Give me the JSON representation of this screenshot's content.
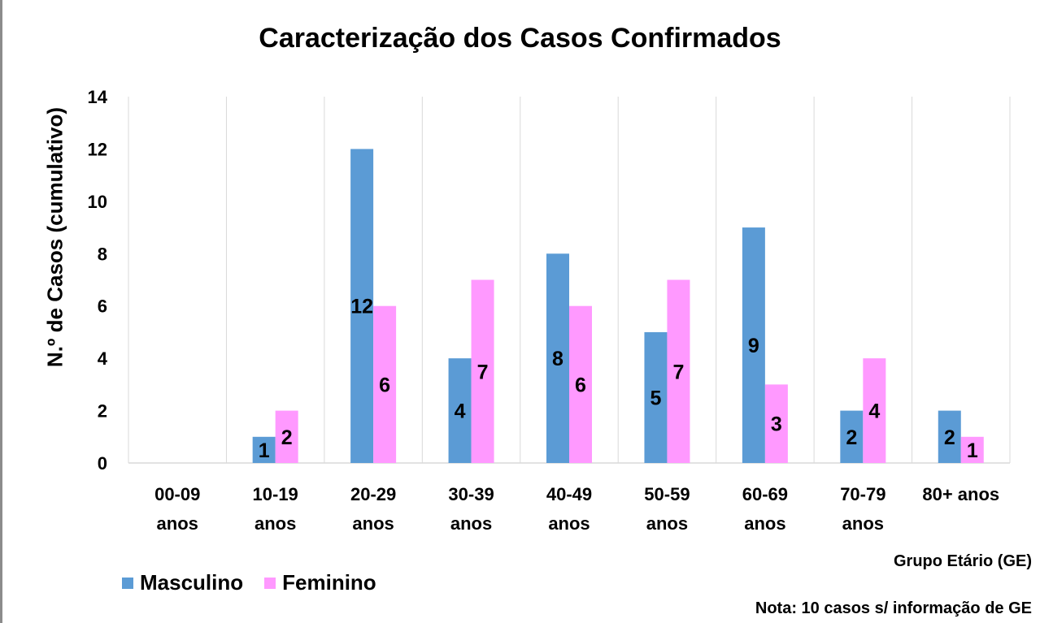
{
  "chart_data": {
    "type": "bar",
    "title": "Caracterização dos Casos Confirmados",
    "ylabel": "N.º de Casos (cumulativo)",
    "xlabel": "Grupo Etário (GE)",
    "note": "Nota: 10 casos s/ informação de GE",
    "categories": [
      [
        "00-09",
        "anos"
      ],
      [
        "10-19",
        "anos"
      ],
      [
        "20-29",
        "anos"
      ],
      [
        "30-39",
        "anos"
      ],
      [
        "40-49",
        "anos"
      ],
      [
        "50-59",
        "anos"
      ],
      [
        "60-69",
        "anos"
      ],
      [
        "70-79",
        "anos"
      ],
      [
        "80+ anos"
      ]
    ],
    "series": [
      {
        "name": "Masculino",
        "color": "#5b9bd5",
        "values": [
          0,
          1,
          12,
          4,
          8,
          5,
          9,
          2,
          2
        ]
      },
      {
        "name": "Feminino",
        "color": "#ff99ff",
        "values": [
          0,
          2,
          6,
          7,
          6,
          7,
          3,
          4,
          1
        ]
      }
    ],
    "ylim": [
      0,
      14
    ],
    "yticks": [
      0,
      2,
      4,
      6,
      8,
      10,
      12,
      14
    ],
    "grid": "vertical",
    "legend_position": "bottom-left"
  }
}
